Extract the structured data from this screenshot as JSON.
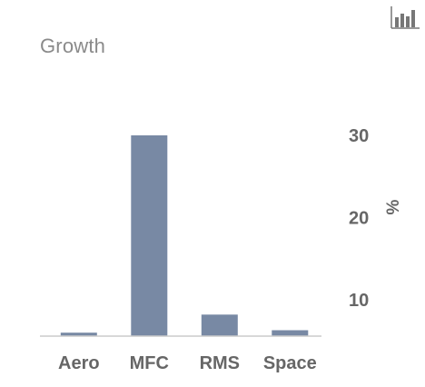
{
  "title": "Growth",
  "toolbar": {
    "chart_toggle_icon": "bar-chart-icon"
  },
  "chart_data": {
    "type": "bar",
    "title": "Growth",
    "categories": [
      "Aero",
      "MFC",
      "RMS",
      "Space"
    ],
    "values": [
      6,
      30,
      8.2,
      6.3
    ],
    "xlabel": "",
    "ylabel": "%",
    "y_axis_position": "right",
    "yticks": [
      10,
      20,
      30
    ],
    "ylim": [
      0,
      34
    ],
    "grid": false,
    "legend": "none",
    "bar_color": "#7889a4",
    "baseline_color": "#cccccc",
    "label_color": "#666666"
  }
}
